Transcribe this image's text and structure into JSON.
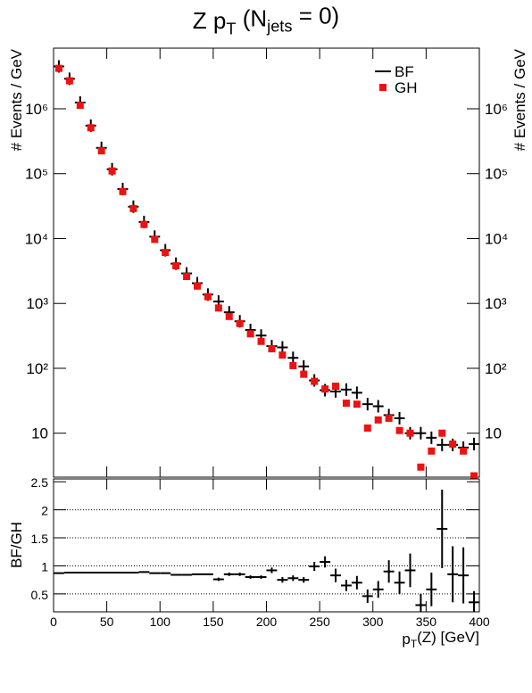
{
  "chart_data": [
    {
      "type": "scatter",
      "title": [
        "Z p",
        "T",
        " (N",
        "jets",
        " = 0)"
      ],
      "y_label": "# Events / GeV",
      "log_y": true,
      "legend": "top-right",
      "x": [
        5,
        15,
        25,
        35,
        45,
        55,
        65,
        75,
        85,
        95,
        105,
        115,
        125,
        135,
        145,
        155,
        165,
        175,
        185,
        195,
        205,
        215,
        225,
        235,
        245,
        255,
        265,
        275,
        285,
        295,
        305,
        315,
        325,
        335,
        345,
        355,
        365,
        375,
        385,
        395
      ],
      "xlim": [
        0,
        400
      ],
      "xticks": [
        0,
        50,
        100,
        150,
        200,
        250,
        300,
        350,
        400
      ],
      "ylim": [
        2.1,
        8600000
      ],
      "yticks": [
        {
          "value": 10,
          "label": "10"
        },
        {
          "value": 100,
          "label": "10²"
        },
        {
          "value": 1000,
          "label": "10³"
        },
        {
          "value": 10000,
          "label": "10⁴"
        },
        {
          "value": 100000,
          "label": "10⁵"
        },
        {
          "value": 1000000,
          "label": "10⁶"
        }
      ],
      "series": [
        {
          "name": "BF",
          "color": "#000000",
          "marker": "cross",
          "values": [
            4500000,
            2900000,
            1250000,
            550000,
            250000,
            117000,
            58000,
            31000,
            18000,
            10700,
            6600,
            4100,
            2900,
            2050,
            1370,
            1070,
            730,
            530,
            390,
            320,
            220,
            210,
            145,
            107,
            65,
            46,
            44,
            47,
            42,
            28,
            26,
            19,
            17,
            10,
            10,
            8.5,
            6.6,
            6.6,
            6,
            6.8
          ]
        },
        {
          "name": "GH",
          "color": "#ee1111",
          "marker": "square",
          "values": [
            4200000,
            2700000,
            1130000,
            510000,
            225000,
            110000,
            53000,
            29000,
            16500,
            9700,
            6100,
            3800,
            2600,
            1850,
            1270,
            850,
            630,
            490,
            340,
            260,
            200,
            160,
            110,
            81,
            63,
            48,
            53,
            29,
            28,
            12,
            16,
            17,
            11,
            10,
            3,
            5.3,
            10,
            6.8,
            5.3,
            2.2
          ]
        }
      ]
    },
    {
      "type": "errorbar",
      "y_label": "BF/GH",
      "x_label": [
        "p",
        "T",
        "(Z) [GeV]"
      ],
      "x": [
        5,
        15,
        25,
        35,
        45,
        55,
        65,
        75,
        85,
        95,
        105,
        115,
        125,
        135,
        145,
        155,
        165,
        175,
        185,
        195,
        205,
        215,
        225,
        235,
        245,
        255,
        265,
        275,
        285,
        295,
        305,
        315,
        325,
        335,
        345,
        355,
        365,
        375,
        385,
        395
      ],
      "xlim": [
        0,
        400
      ],
      "xticks": [
        0,
        50,
        100,
        150,
        200,
        250,
        300,
        350,
        400
      ],
      "ylim": [
        0.18,
        2.55
      ],
      "yticks": [
        0.5,
        1,
        1.5,
        2,
        2.5
      ],
      "grid_y": [
        0.5,
        1,
        1.5,
        2
      ],
      "series": [
        {
          "color": "#000000",
          "values": [
            0.87,
            0.88,
            0.88,
            0.88,
            0.88,
            0.88,
            0.88,
            0.88,
            0.89,
            0.87,
            0.87,
            0.84,
            0.84,
            0.85,
            0.85,
            0.76,
            0.85,
            0.85,
            0.8,
            0.8,
            0.92,
            0.75,
            0.78,
            0.75,
            0.99,
            1.07,
            0.83,
            0.65,
            0.7,
            0.46,
            0.58,
            0.9,
            0.7,
            0.92,
            0.3,
            0.58,
            1.66,
            0.85,
            0.83,
            0.35
          ],
          "errors": [
            0.01,
            0.01,
            0.01,
            0.01,
            0.01,
            0.01,
            0.01,
            0.01,
            0.01,
            0.01,
            0.01,
            0.01,
            0.01,
            0.01,
            0.01,
            0.03,
            0.03,
            0.03,
            0.03,
            0.03,
            0.05,
            0.05,
            0.05,
            0.05,
            0.08,
            0.1,
            0.12,
            0.1,
            0.12,
            0.12,
            0.15,
            0.2,
            0.2,
            0.3,
            0.2,
            0.3,
            0.7,
            0.5,
            0.5,
            0.2
          ]
        }
      ]
    }
  ]
}
